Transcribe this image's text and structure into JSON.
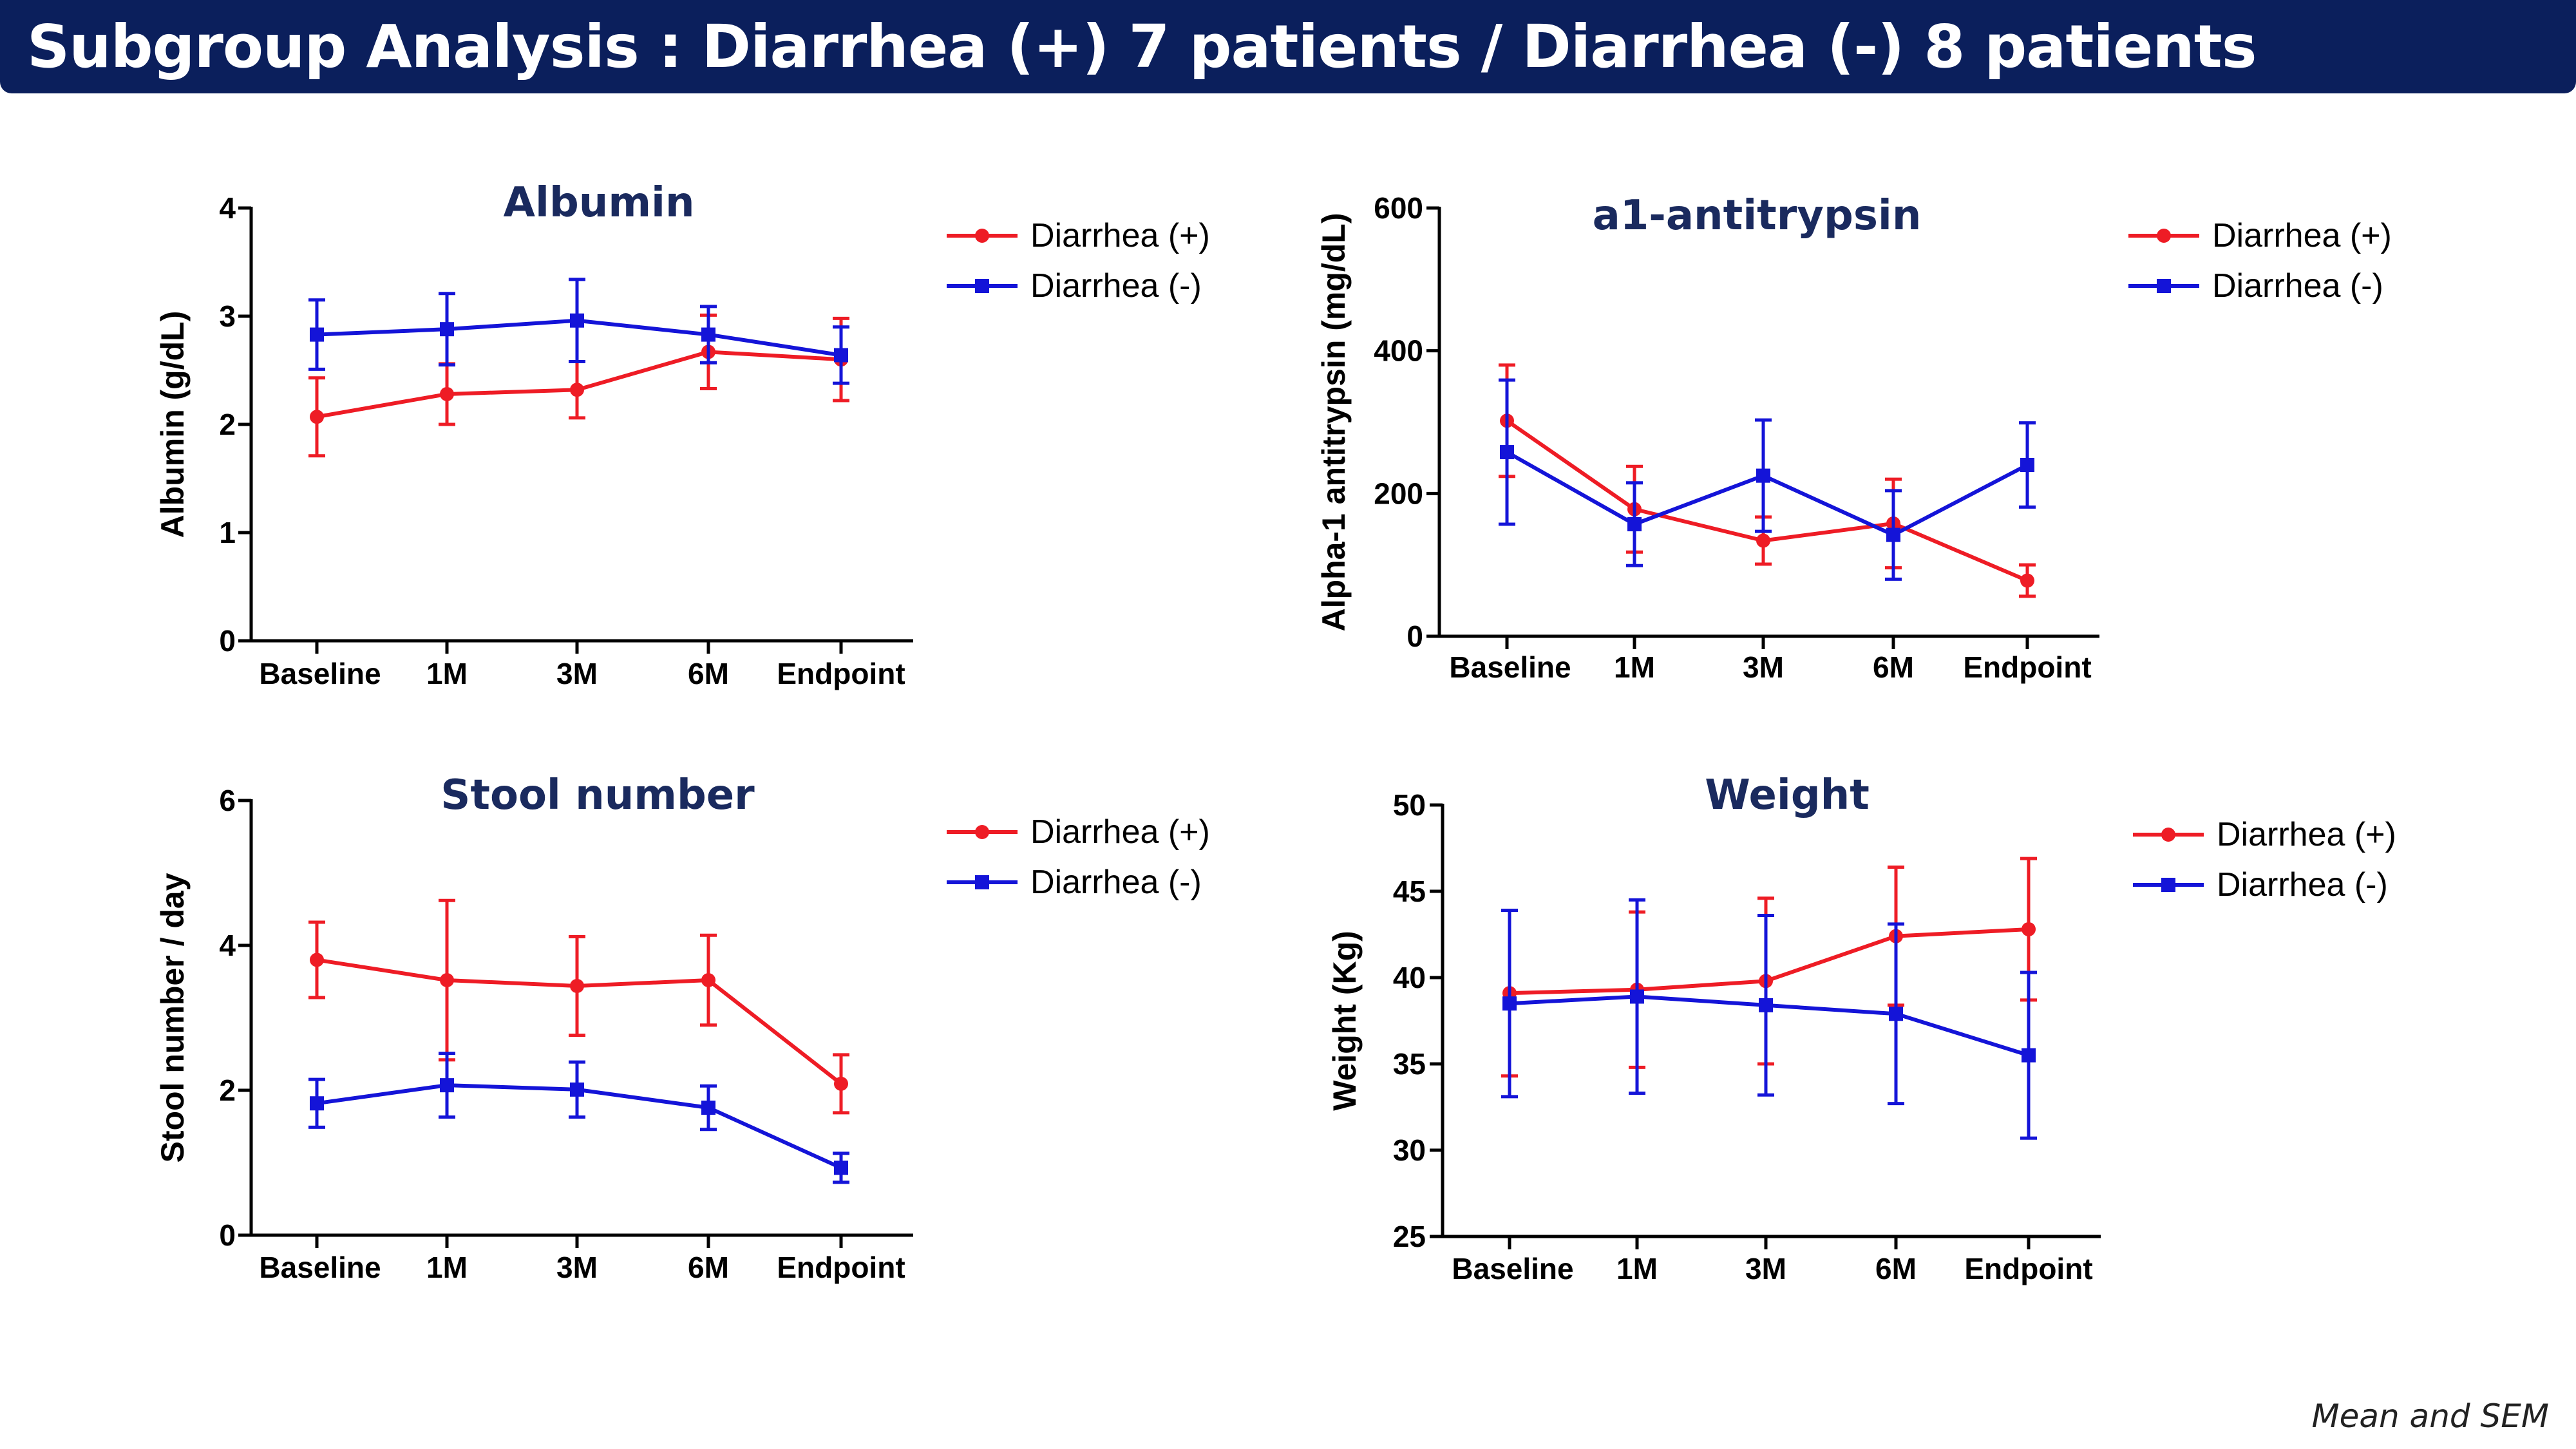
{
  "header": {
    "title": "Subgroup Analysis : Diarrhea (+) 7 patients / Diarrhea (-) 8 patients"
  },
  "footnote": "Mean and SEM",
  "colors": {
    "title_bar": "#0b1f5c",
    "chart_title": "#1a2a5e",
    "diarrhea_pos": "#ee1c25",
    "diarrhea_neg": "#1414d8"
  },
  "chart_data": [
    {
      "type": "line",
      "title": "Albumin",
      "ylabel": "Albumin (g/dL)",
      "xlabel": "",
      "categories": [
        "Baseline",
        "1M",
        "3M",
        "6M",
        "Endpoint"
      ],
      "ylim": [
        0,
        4
      ],
      "yticks": [
        0,
        1,
        2,
        3,
        4
      ],
      "legend": "top-right",
      "series": [
        {
          "name": "Diarrhea (+)",
          "marker": "circle",
          "color": "#ee1c25",
          "values": [
            2.07,
            2.28,
            2.32,
            2.67,
            2.6
          ],
          "sem": [
            0.36,
            0.28,
            0.26,
            0.34,
            0.38
          ]
        },
        {
          "name": "Diarrhea (-)",
          "marker": "square",
          "color": "#1414d8",
          "values": [
            2.83,
            2.88,
            2.96,
            2.83,
            2.64
          ],
          "sem": [
            0.32,
            0.33,
            0.38,
            0.26,
            0.26
          ]
        }
      ]
    },
    {
      "type": "line",
      "title": "a1-antitrypsin",
      "ylabel": "Alpha-1 antitrypsin (mg/dL)",
      "xlabel": "",
      "categories": [
        "Baseline",
        "1M",
        "3M",
        "6M",
        "Endpoint"
      ],
      "ylim": [
        0,
        600
      ],
      "yticks": [
        0,
        200,
        400,
        600
      ],
      "legend": "top-right",
      "series": [
        {
          "name": "Diarrhea (+)",
          "marker": "circle",
          "color": "#ee1c25",
          "values": [
            302,
            178,
            134,
            158,
            78
          ],
          "sem": [
            78,
            60,
            33,
            62,
            22
          ]
        },
        {
          "name": "Diarrhea (-)",
          "marker": "square",
          "color": "#1414d8",
          "values": [
            258,
            157,
            225,
            142,
            240
          ],
          "sem": [
            101,
            58,
            78,
            62,
            59
          ]
        }
      ]
    },
    {
      "type": "line",
      "title": "Stool number",
      "ylabel": "Stool number / day",
      "xlabel": "",
      "categories": [
        "Baseline",
        "1M",
        "3M",
        "6M",
        "Endpoint"
      ],
      "ylim": [
        0,
        6
      ],
      "yticks": [
        0,
        2,
        4,
        6
      ],
      "legend": "top-right",
      "series": [
        {
          "name": "Diarrhea (+)",
          "marker": "circle",
          "color": "#ee1c25",
          "values": [
            3.8,
            3.52,
            3.44,
            3.52,
            2.09
          ],
          "sem": [
            0.52,
            1.1,
            0.68,
            0.62,
            0.4
          ]
        },
        {
          "name": "Diarrhea (-)",
          "marker": "square",
          "color": "#1414d8",
          "values": [
            1.82,
            2.07,
            2.01,
            1.76,
            0.93
          ],
          "sem": [
            0.33,
            0.44,
            0.38,
            0.3,
            0.2
          ]
        }
      ]
    },
    {
      "type": "line",
      "title": "Weight",
      "ylabel": "Weight (Kg)",
      "xlabel": "",
      "categories": [
        "Baseline",
        "1M",
        "3M",
        "6M",
        "Endpoint"
      ],
      "ylim": [
        25,
        50
      ],
      "yticks": [
        25,
        30,
        35,
        40,
        45,
        50
      ],
      "legend": "top-right",
      "series": [
        {
          "name": "Diarrhea (+)",
          "marker": "circle",
          "color": "#ee1c25",
          "values": [
            39.1,
            39.3,
            39.8,
            42.4,
            42.8
          ],
          "sem": [
            4.8,
            4.5,
            4.8,
            4.0,
            4.1
          ]
        },
        {
          "name": "Diarrhea (-)",
          "marker": "square",
          "color": "#1414d8",
          "values": [
            38.5,
            38.9,
            38.4,
            37.9,
            35.5
          ],
          "sem": [
            5.4,
            5.6,
            5.2,
            5.2,
            4.8
          ]
        }
      ]
    }
  ]
}
